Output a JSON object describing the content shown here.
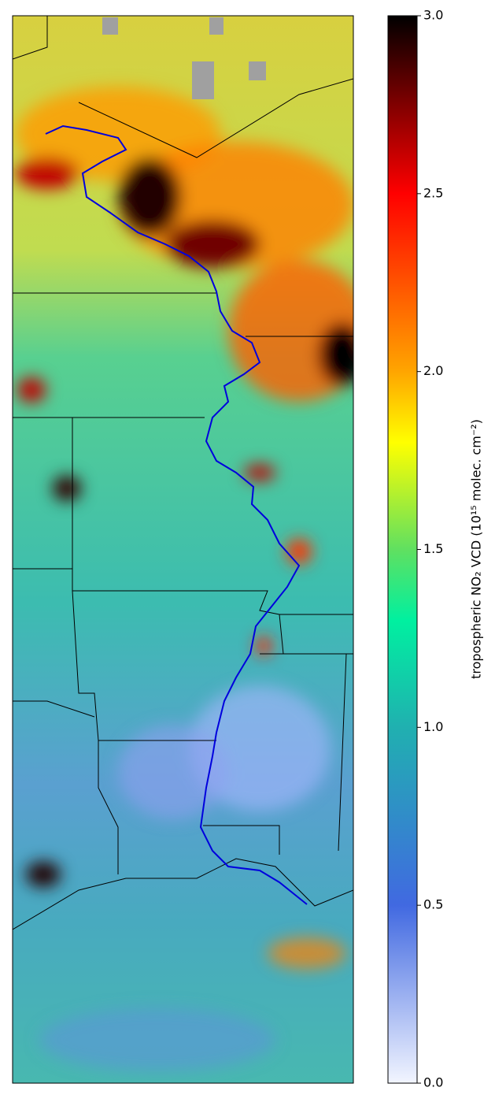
{
  "chart_data": {
    "type": "map",
    "colorbar": {
      "label": "tropospheric NO₂ VCD (10¹⁵ molec. cm⁻²)",
      "ylim": [
        0,
        3
      ],
      "yticks": [
        {
          "value": 0,
          "label": "0.0"
        },
        {
          "value": 0.5,
          "label": "0.5"
        },
        {
          "value": 1,
          "label": "1.0"
        },
        {
          "value": 1.5,
          "label": "1.5"
        },
        {
          "value": 2,
          "label": "2.0"
        },
        {
          "value": 2.5,
          "label": "2.5"
        },
        {
          "value": 3,
          "label": "3.0"
        }
      ],
      "colormap": [
        {
          "value": 0,
          "color": "#f2f5ff"
        },
        {
          "value": 0.5,
          "color": "#4169e1"
        },
        {
          "value": 1,
          "color": "#20b0b0"
        },
        {
          "value": 1.3,
          "color": "#00f0a0"
        },
        {
          "value": 1.5,
          "color": "#60e060"
        },
        {
          "value": 1.8,
          "color": "#ffff00"
        },
        {
          "value": 2,
          "color": "#ffa500"
        },
        {
          "value": 2.5,
          "color": "#ff0000"
        },
        {
          "value": 2.75,
          "color": "#800000"
        },
        {
          "value": 3,
          "color": "#000000"
        }
      ]
    }
  }
}
